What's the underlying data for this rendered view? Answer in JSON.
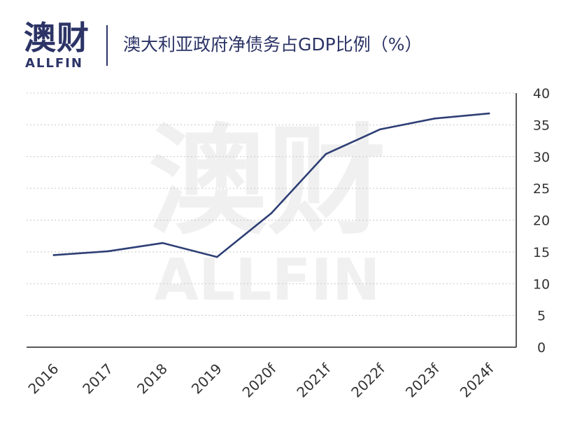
{
  "header": {
    "logo_cn": "澳财",
    "logo_en": "ALLFIN",
    "title": "澳大利亚政府净债务占GDP比例（%）"
  },
  "watermark": {
    "cn": "澳财",
    "en": "ALLFIN"
  },
  "colors": {
    "brand": "#2c3466",
    "line": "#2e3f75",
    "grid": "#c8c8c8",
    "watermark": "#f0f0f0"
  },
  "chart_data": {
    "type": "line",
    "title": "澳大利亚政府净债务占GDP比例（%）",
    "categories": [
      "2016",
      "2017",
      "2018",
      "2019",
      "2020f",
      "2021f",
      "2022f",
      "2023f",
      "2024f"
    ],
    "values": [
      14.5,
      15.1,
      16.4,
      14.2,
      21.1,
      30.4,
      34.3,
      36.0,
      36.8
    ],
    "yticks": [
      "0",
      "5",
      "10",
      "15",
      "20",
      "25",
      "30",
      "35",
      "40"
    ],
    "ylim": [
      0,
      40
    ],
    "y_axis_side": "right",
    "grid": true,
    "legend": "none"
  }
}
